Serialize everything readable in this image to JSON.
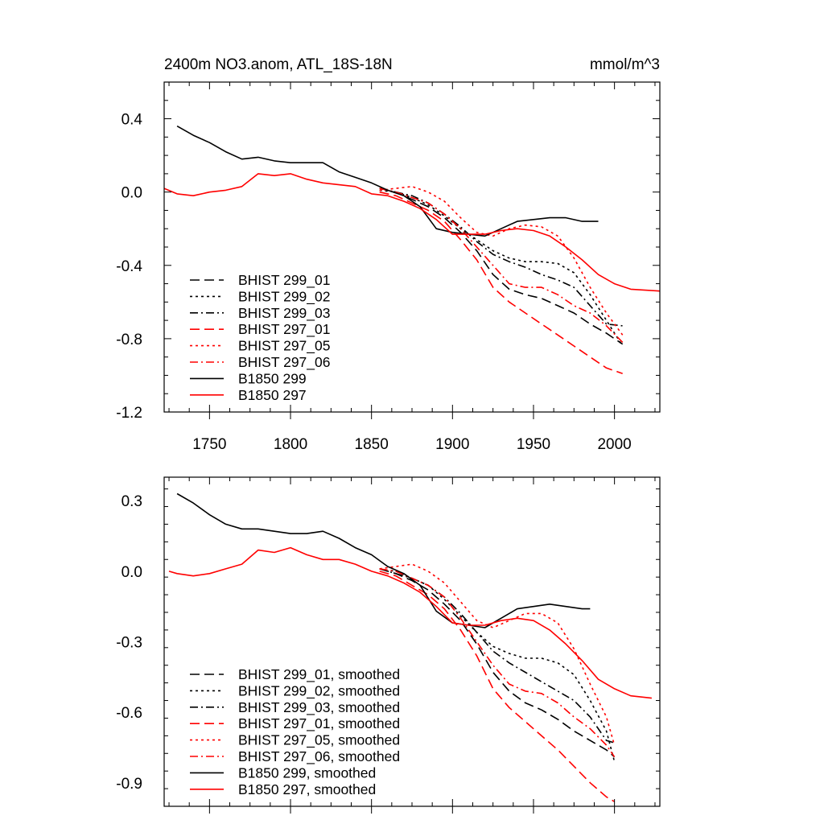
{
  "chart_data": [
    {
      "type": "line",
      "title": "2400m NO3.anom, ATL_18S-18N",
      "units": "mmol/m^3",
      "ylim": [
        -1.2,
        0.6
      ],
      "xlim": [
        1722,
        2028
      ],
      "yticks": [
        0.4,
        0.0,
        -0.4,
        -0.8,
        -1.2
      ],
      "ytick_labels": [
        "0.4",
        "0.0",
        "-0.4",
        "-0.8",
        "-1.2"
      ],
      "xticks": [
        1750,
        1800,
        1850,
        1900,
        1950,
        2000
      ],
      "xtick_labels": [
        "1750",
        "1800",
        "1850",
        "1900",
        "1950",
        "2000"
      ],
      "legend_position": "bottom-left",
      "grid": false,
      "series": [
        {
          "name": "BHIST 299_01",
          "color": "#000000",
          "dash": "dash",
          "x": [
            1855,
            1865,
            1875,
            1885,
            1895,
            1905,
            1915,
            1925,
            1935,
            1945,
            1955,
            1965,
            1975,
            1985,
            1995,
            2005
          ],
          "y": [
            0.02,
            0.0,
            -0.04,
            -0.08,
            -0.14,
            -0.22,
            -0.32,
            -0.45,
            -0.53,
            -0.56,
            -0.58,
            -0.62,
            -0.66,
            -0.72,
            -0.77,
            -0.83
          ]
        },
        {
          "name": "BHIST 299_02",
          "color": "#000000",
          "dash": "dot",
          "x": [
            1855,
            1865,
            1875,
            1885,
            1895,
            1905,
            1915,
            1925,
            1935,
            1945,
            1955,
            1965,
            1975,
            1985,
            1995,
            2005
          ],
          "y": [
            0.01,
            0.0,
            -0.03,
            -0.07,
            -0.13,
            -0.2,
            -0.26,
            -0.32,
            -0.36,
            -0.38,
            -0.38,
            -0.39,
            -0.44,
            -0.56,
            -0.7,
            -0.84
          ]
        },
        {
          "name": "BHIST 299_03",
          "color": "#000000",
          "dash": "dashdot",
          "x": [
            1855,
            1865,
            1875,
            1885,
            1895,
            1905,
            1915,
            1925,
            1935,
            1945,
            1955,
            1965,
            1975,
            1985,
            1995,
            2005
          ],
          "y": [
            0.02,
            0.0,
            -0.02,
            -0.06,
            -0.12,
            -0.19,
            -0.27,
            -0.34,
            -0.38,
            -0.41,
            -0.45,
            -0.48,
            -0.52,
            -0.62,
            -0.72,
            -0.73
          ]
        },
        {
          "name": "BHIST 297_01",
          "color": "#ff0000",
          "dash": "dash",
          "x": [
            1855,
            1865,
            1875,
            1885,
            1895,
            1905,
            1915,
            1925,
            1935,
            1945,
            1955,
            1965,
            1975,
            1985,
            1995,
            2005
          ],
          "y": [
            0.0,
            -0.02,
            -0.06,
            -0.1,
            -0.16,
            -0.26,
            -0.37,
            -0.52,
            -0.6,
            -0.66,
            -0.72,
            -0.78,
            -0.84,
            -0.9,
            -0.96,
            -0.99
          ]
        },
        {
          "name": "BHIST 297_05",
          "color": "#ff0000",
          "dash": "dot",
          "x": [
            1855,
            1865,
            1875,
            1885,
            1895,
            1905,
            1915,
            1925,
            1935,
            1945,
            1955,
            1965,
            1975,
            1985,
            1995,
            2005
          ],
          "y": [
            0.01,
            0.02,
            0.03,
            0.0,
            -0.05,
            -0.14,
            -0.22,
            -0.24,
            -0.2,
            -0.18,
            -0.19,
            -0.24,
            -0.36,
            -0.52,
            -0.66,
            -0.78
          ]
        },
        {
          "name": "BHIST 297_06",
          "color": "#ff0000",
          "dash": "dashdot",
          "x": [
            1855,
            1865,
            1875,
            1885,
            1895,
            1905,
            1915,
            1925,
            1935,
            1945,
            1955,
            1965,
            1975,
            1985,
            1995,
            2005
          ],
          "y": [
            0.02,
            0.0,
            -0.03,
            -0.06,
            -0.12,
            -0.2,
            -0.3,
            -0.4,
            -0.5,
            -0.52,
            -0.52,
            -0.56,
            -0.62,
            -0.66,
            -0.73,
            -0.82
          ]
        },
        {
          "name": "B1850 299",
          "color": "#000000",
          "dash": "solid",
          "x": [
            1730,
            1740,
            1750,
            1760,
            1770,
            1780,
            1790,
            1800,
            1810,
            1820,
            1830,
            1840,
            1850,
            1860,
            1870,
            1880,
            1890,
            1900,
            1910,
            1920,
            1930,
            1940,
            1950,
            1960,
            1970,
            1980,
            1990
          ],
          "y": [
            0.36,
            0.31,
            0.27,
            0.22,
            0.18,
            0.19,
            0.17,
            0.16,
            0.16,
            0.16,
            0.11,
            0.08,
            0.05,
            0.01,
            -0.02,
            -0.08,
            -0.2,
            -0.22,
            -0.23,
            -0.24,
            -0.2,
            -0.16,
            -0.15,
            -0.14,
            -0.14,
            -0.16,
            -0.16
          ]
        },
        {
          "name": "B1850 297",
          "color": "#ff0000",
          "dash": "solid",
          "x": [
            1722,
            1730,
            1740,
            1750,
            1760,
            1770,
            1780,
            1790,
            1800,
            1810,
            1820,
            1830,
            1840,
            1850,
            1860,
            1870,
            1880,
            1890,
            1900,
            1910,
            1920,
            1930,
            1940,
            1950,
            1960,
            1970,
            1980,
            1990,
            2000,
            2010,
            2028
          ],
          "y": [
            0.02,
            -0.01,
            -0.02,
            0.0,
            0.01,
            0.03,
            0.1,
            0.09,
            0.1,
            0.07,
            0.05,
            0.04,
            0.03,
            -0.01,
            -0.02,
            -0.05,
            -0.09,
            -0.15,
            -0.23,
            -0.23,
            -0.23,
            -0.21,
            -0.2,
            -0.21,
            -0.24,
            -0.3,
            -0.37,
            -0.45,
            -0.5,
            -0.53,
            -0.54
          ]
        }
      ]
    },
    {
      "type": "line",
      "title": "",
      "units": "",
      "ylim": [
        -1.0,
        0.4
      ],
      "xlim": [
        1722,
        2028
      ],
      "yticks": [
        0.3,
        0.0,
        -0.3,
        -0.6,
        -0.9
      ],
      "ytick_labels": [
        "0.3",
        "0.0",
        "-0.3",
        "-0.6",
        "-0.9"
      ],
      "xticks": [
        1750,
        1800,
        1850,
        1900,
        1950,
        2000
      ],
      "xtick_labels": [],
      "legend_position": "bottom-left",
      "grid": false,
      "series": [
        {
          "name": "BHIST 299_01, smoothed",
          "color": "#000000",
          "dash": "dash",
          "x": [
            1855,
            1865,
            1875,
            1885,
            1895,
            1905,
            1915,
            1925,
            1935,
            1945,
            1955,
            1965,
            1975,
            1985,
            1995,
            2000
          ],
          "y": [
            0.01,
            -0.01,
            -0.04,
            -0.08,
            -0.14,
            -0.21,
            -0.31,
            -0.43,
            -0.51,
            -0.56,
            -0.59,
            -0.63,
            -0.68,
            -0.72,
            -0.76,
            -0.79
          ]
        },
        {
          "name": "BHIST 299_02, smoothed",
          "color": "#000000",
          "dash": "dot",
          "x": [
            1855,
            1865,
            1875,
            1885,
            1895,
            1905,
            1915,
            1925,
            1935,
            1945,
            1955,
            1965,
            1975,
            1985,
            1995,
            2000
          ],
          "y": [
            0.01,
            0.0,
            -0.03,
            -0.06,
            -0.12,
            -0.19,
            -0.26,
            -0.32,
            -0.35,
            -0.37,
            -0.37,
            -0.39,
            -0.44,
            -0.55,
            -0.68,
            -0.81
          ]
        },
        {
          "name": "BHIST 299_03, smoothed",
          "color": "#000000",
          "dash": "dashdot",
          "x": [
            1855,
            1865,
            1875,
            1885,
            1895,
            1905,
            1915,
            1925,
            1935,
            1945,
            1955,
            1965,
            1975,
            1985,
            1995,
            2000
          ],
          "y": [
            0.01,
            -0.01,
            -0.03,
            -0.06,
            -0.11,
            -0.18,
            -0.26,
            -0.34,
            -0.39,
            -0.43,
            -0.47,
            -0.51,
            -0.55,
            -0.62,
            -0.72,
            -0.73
          ]
        },
        {
          "name": "BHIST 297_01, smoothed",
          "color": "#ff0000",
          "dash": "dash",
          "x": [
            1855,
            1865,
            1875,
            1885,
            1895,
            1905,
            1915,
            1925,
            1935,
            1945,
            1955,
            1965,
            1975,
            1985,
            1995,
            2000
          ],
          "y": [
            0.0,
            -0.02,
            -0.06,
            -0.1,
            -0.16,
            -0.25,
            -0.36,
            -0.5,
            -0.58,
            -0.64,
            -0.7,
            -0.76,
            -0.83,
            -0.9,
            -0.96,
            -0.98
          ]
        },
        {
          "name": "BHIST 297_05, smoothed",
          "color": "#ff0000",
          "dash": "dot",
          "x": [
            1855,
            1865,
            1875,
            1885,
            1895,
            1905,
            1915,
            1925,
            1935,
            1945,
            1955,
            1965,
            1975,
            1985,
            1995,
            2000
          ],
          "y": [
            0.01,
            0.02,
            0.03,
            0.0,
            -0.05,
            -0.13,
            -0.21,
            -0.24,
            -0.21,
            -0.18,
            -0.18,
            -0.22,
            -0.33,
            -0.48,
            -0.62,
            -0.74
          ]
        },
        {
          "name": "BHIST 297_06, smoothed",
          "color": "#ff0000",
          "dash": "dashdot",
          "x": [
            1855,
            1865,
            1875,
            1885,
            1895,
            1905,
            1915,
            1925,
            1935,
            1945,
            1955,
            1965,
            1975,
            1985,
            1995,
            2000
          ],
          "y": [
            0.01,
            0.0,
            -0.03,
            -0.06,
            -0.11,
            -0.2,
            -0.3,
            -0.4,
            -0.48,
            -0.51,
            -0.52,
            -0.56,
            -0.62,
            -0.67,
            -0.74,
            -0.79
          ]
        },
        {
          "name": "B1850 299, smoothed",
          "color": "#000000",
          "dash": "solid",
          "x": [
            1730,
            1740,
            1750,
            1760,
            1770,
            1780,
            1790,
            1800,
            1810,
            1820,
            1830,
            1840,
            1850,
            1860,
            1870,
            1880,
            1890,
            1900,
            1910,
            1920,
            1930,
            1940,
            1950,
            1960,
            1970,
            1980,
            1985
          ],
          "y": [
            0.33,
            0.29,
            0.24,
            0.2,
            0.18,
            0.18,
            0.17,
            0.16,
            0.16,
            0.17,
            0.14,
            0.1,
            0.07,
            0.02,
            -0.01,
            -0.06,
            -0.17,
            -0.22,
            -0.23,
            -0.24,
            -0.2,
            -0.16,
            -0.15,
            -0.14,
            -0.15,
            -0.16,
            -0.16
          ]
        },
        {
          "name": "B1850 297, smoothed",
          "color": "#ff0000",
          "dash": "solid",
          "x": [
            1725,
            1730,
            1740,
            1750,
            1760,
            1770,
            1780,
            1790,
            1800,
            1810,
            1820,
            1830,
            1840,
            1850,
            1860,
            1870,
            1880,
            1890,
            1900,
            1910,
            1920,
            1930,
            1940,
            1950,
            1960,
            1970,
            1980,
            1990,
            2000,
            2010,
            2023
          ],
          "y": [
            0.0,
            -0.01,
            -0.02,
            -0.01,
            0.01,
            0.03,
            0.09,
            0.08,
            0.1,
            0.07,
            0.05,
            0.05,
            0.03,
            0.0,
            -0.02,
            -0.05,
            -0.09,
            -0.15,
            -0.22,
            -0.23,
            -0.23,
            -0.21,
            -0.2,
            -0.21,
            -0.25,
            -0.31,
            -0.38,
            -0.46,
            -0.5,
            -0.53,
            -0.54
          ]
        }
      ]
    }
  ]
}
